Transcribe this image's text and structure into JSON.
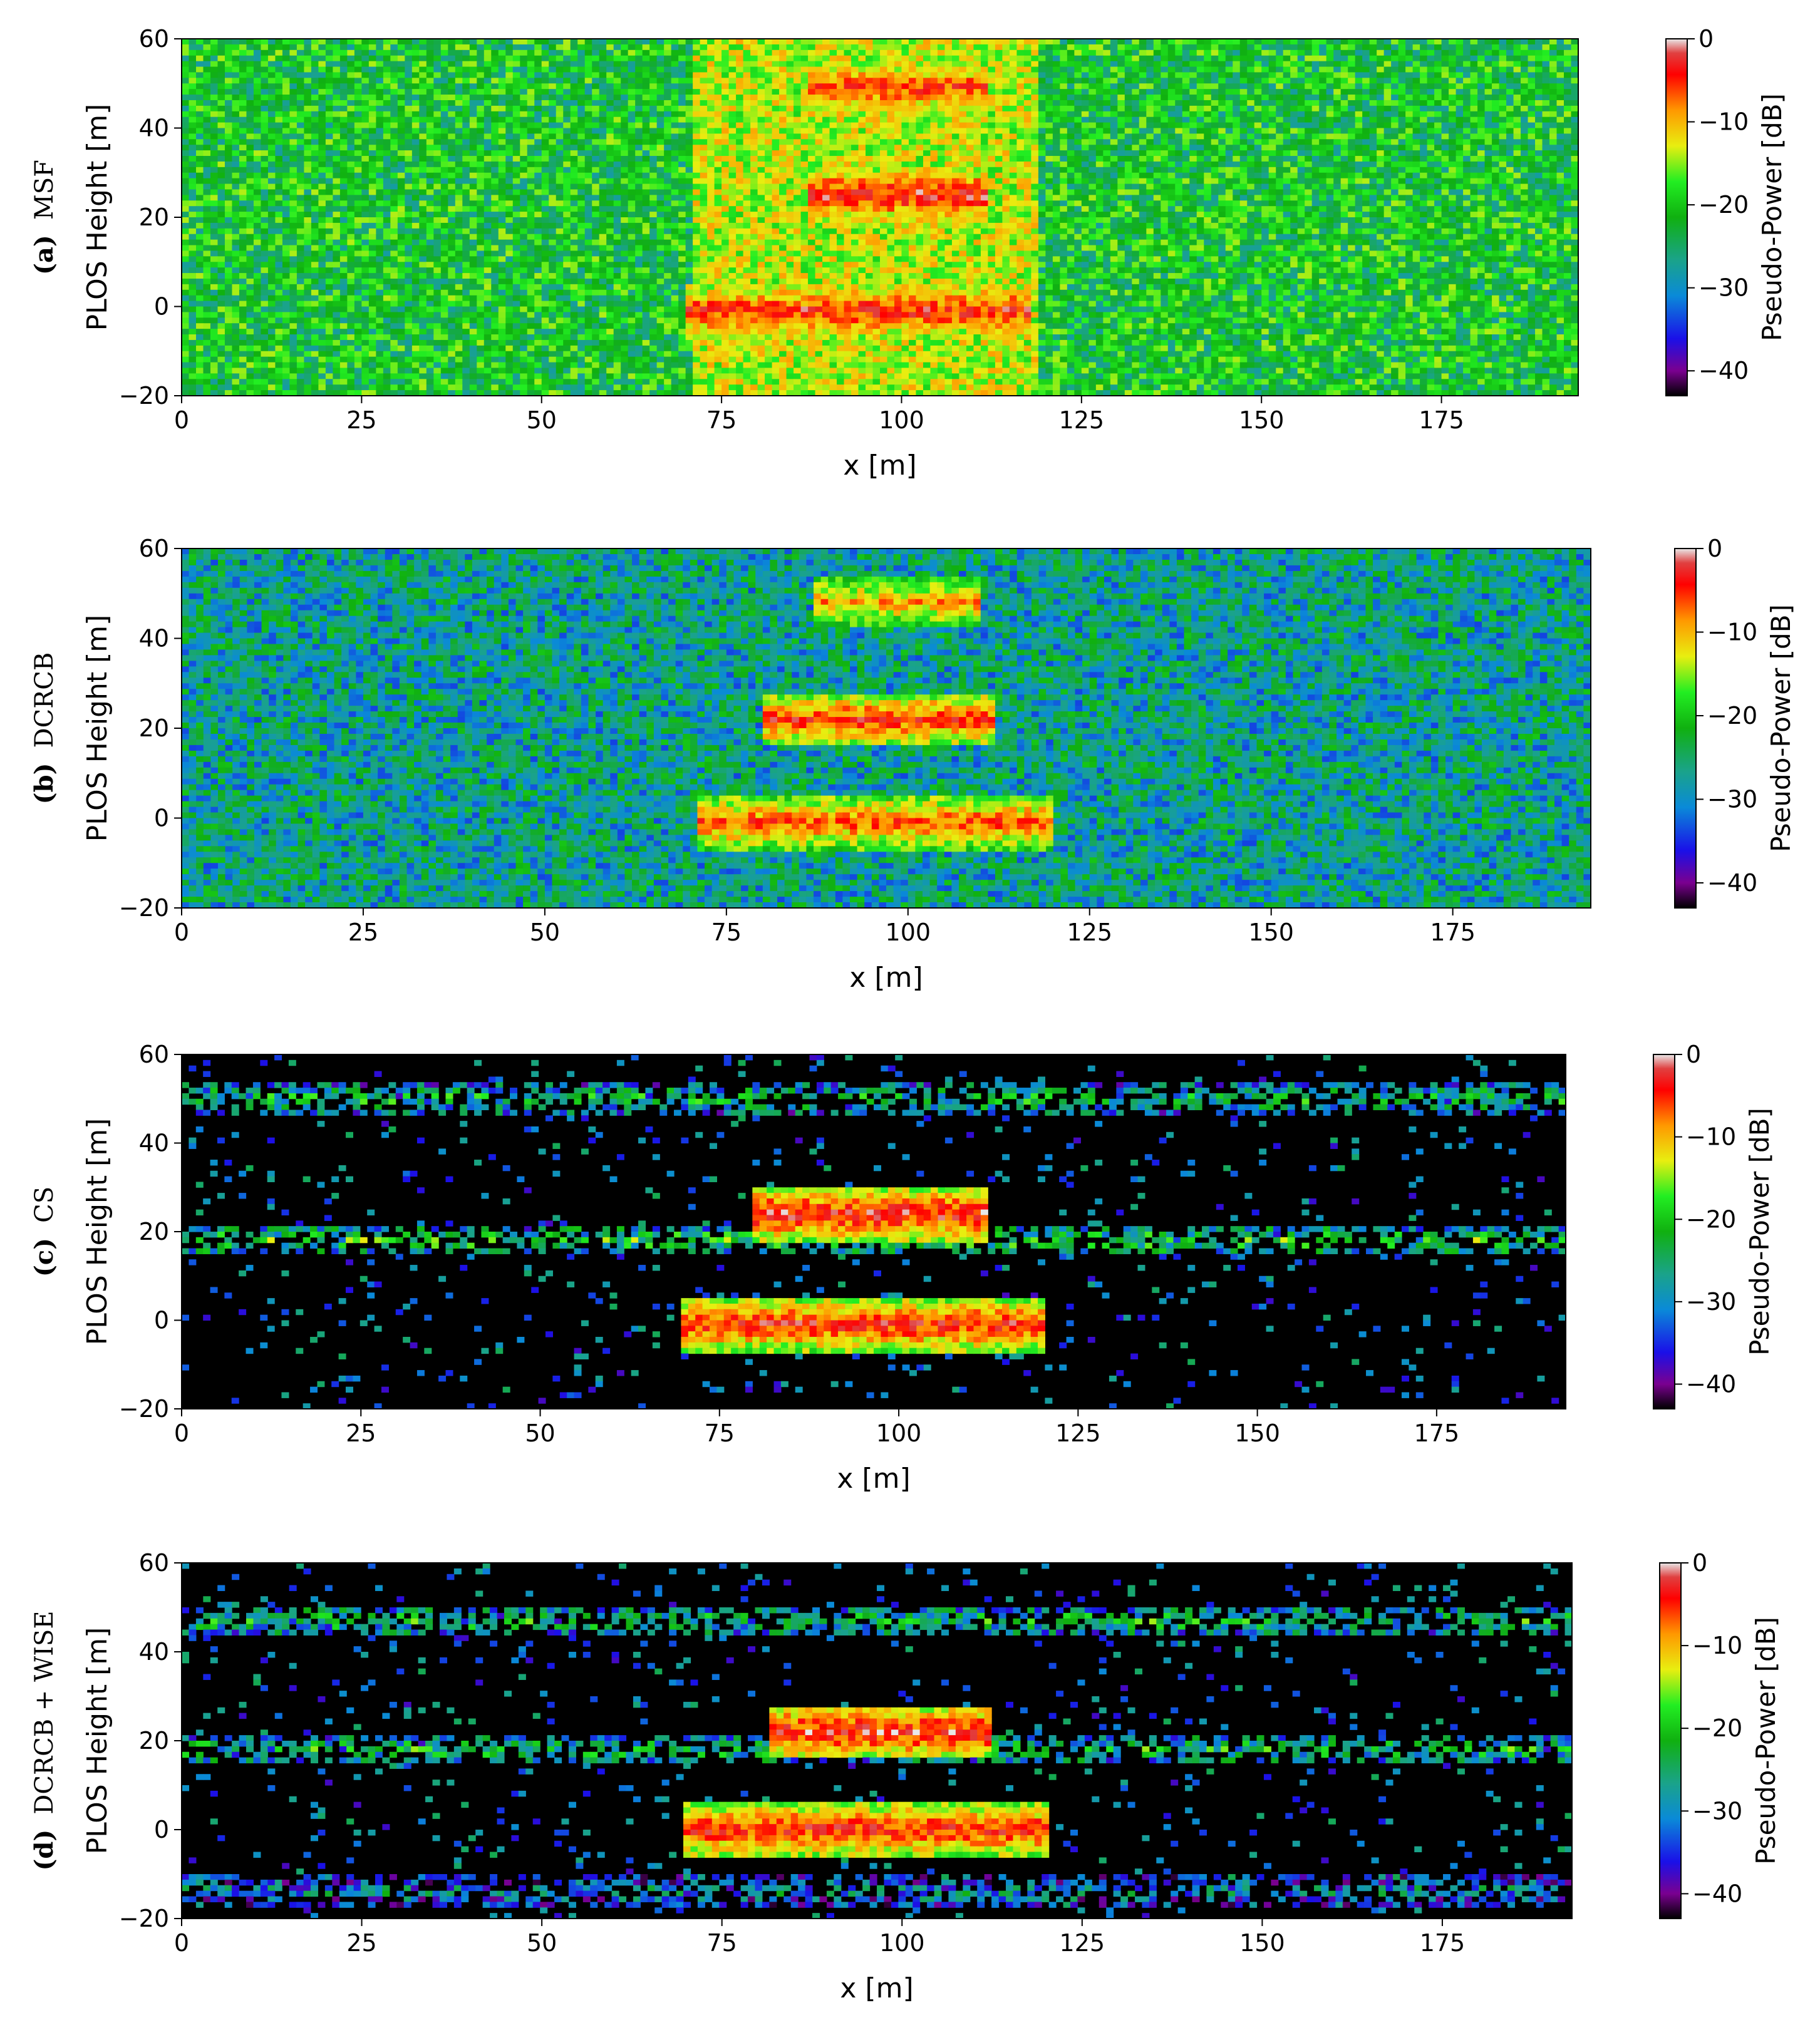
{
  "chart_data": [
    {
      "type": "heatmap",
      "panel_tag": "(a)",
      "method": "MSF",
      "xlabel": "x [m]",
      "ylabel": "PLOS Height [m]",
      "xlim": [
        0,
        194
      ],
      "ylim": [
        -20,
        60
      ],
      "xticks": [
        0,
        25,
        50,
        75,
        100,
        125,
        150,
        175
      ],
      "yticks": [
        -20,
        0,
        20,
        40,
        60
      ],
      "colorbar": {
        "label": "Pseudo-Power [dB]",
        "range": [
          -43,
          0
        ],
        "ticks": [
          0,
          -10,
          -20,
          -30,
          -40
        ]
      },
      "background_db": -21,
      "hot_region": {
        "x": [
          71,
          119
        ],
        "y": [
          -20,
          60
        ],
        "peak_db": -4
      },
      "strong_bands": [
        {
          "x": [
            87,
            112
          ],
          "y_center": 25,
          "peak_db": -3
        },
        {
          "x": [
            87,
            112
          ],
          "y_center": 49,
          "peak_db": -5
        },
        {
          "x": [
            70,
            118
          ],
          "y_center": -1,
          "peak_db": -4
        }
      ]
    },
    {
      "type": "heatmap",
      "panel_tag": "(b)",
      "method": "DCRCB",
      "xlabel": "x [m]",
      "ylabel": "PLOS Height [m]",
      "xlim": [
        0,
        194
      ],
      "ylim": [
        -20,
        60
      ],
      "xticks": [
        0,
        25,
        50,
        75,
        100,
        125,
        150,
        175
      ],
      "yticks": [
        -20,
        0,
        20,
        40,
        60
      ],
      "colorbar": {
        "label": "Pseudo-Power [dB]",
        "range": [
          -43,
          0
        ],
        "ticks": [
          0,
          -10,
          -20,
          -30,
          -40
        ]
      },
      "background_db": -27,
      "strong_bands": [
        {
          "x": [
            80,
            112
          ],
          "y_center": 22,
          "peak_db": -5
        },
        {
          "x": [
            87,
            110
          ],
          "y_center": 48,
          "peak_db": -9
        },
        {
          "x": [
            71,
            120
          ],
          "y_center": -1,
          "peak_db": -6
        }
      ]
    },
    {
      "type": "heatmap",
      "panel_tag": "(c)",
      "method": "CS",
      "xlabel": "x [m]",
      "ylabel": "PLOS Height [m]",
      "xlim": [
        0,
        193
      ],
      "ylim": [
        -20,
        60
      ],
      "xticks": [
        0,
        25,
        50,
        75,
        100,
        125,
        150,
        175
      ],
      "yticks": [
        -20,
        0,
        20,
        40,
        60
      ],
      "colorbar": {
        "label": "Pseudo-Power [dB]",
        "range": [
          -43,
          0
        ],
        "ticks": [
          0,
          -10,
          -20,
          -30,
          -40
        ]
      },
      "background_db": -45,
      "strong_bands": [
        {
          "x": [
            80,
            112
          ],
          "y_center": 24,
          "peak_db": -3
        },
        {
          "x": [
            70,
            120
          ],
          "y_center": -1,
          "peak_db": -4
        },
        {
          "x": [
            0,
            193
          ],
          "y_center": 18,
          "peak_db": -20
        },
        {
          "x": [
            0,
            193
          ],
          "y_center": 50,
          "peak_db": -22
        }
      ]
    },
    {
      "type": "heatmap",
      "panel_tag": "(d)",
      "method": "DCRCB + WISE",
      "xlabel": "x [m]",
      "ylabel": "PLOS Height [m]",
      "xlim": [
        0,
        193
      ],
      "ylim": [
        -20,
        60
      ],
      "xticks": [
        0,
        25,
        50,
        75,
        100,
        125,
        150,
        175
      ],
      "yticks": [
        -20,
        0,
        20,
        40,
        60
      ],
      "colorbar": {
        "label": "Pseudo-Power [dB]",
        "range": [
          -43,
          0
        ],
        "ticks": [
          0,
          -10,
          -20,
          -30,
          -40
        ]
      },
      "background_db": -45,
      "strong_bands": [
        {
          "x": [
            82,
            112
          ],
          "y_center": 22,
          "peak_db": -3
        },
        {
          "x": [
            70,
            120
          ],
          "y_center": 0,
          "peak_db": -4
        },
        {
          "x": [
            0,
            193
          ],
          "y_center": 18,
          "peak_db": -22
        },
        {
          "x": [
            0,
            193
          ],
          "y_center": 47,
          "peak_db": -22
        },
        {
          "x": [
            0,
            193
          ],
          "y_center": -14,
          "peak_db": -28
        }
      ]
    }
  ]
}
